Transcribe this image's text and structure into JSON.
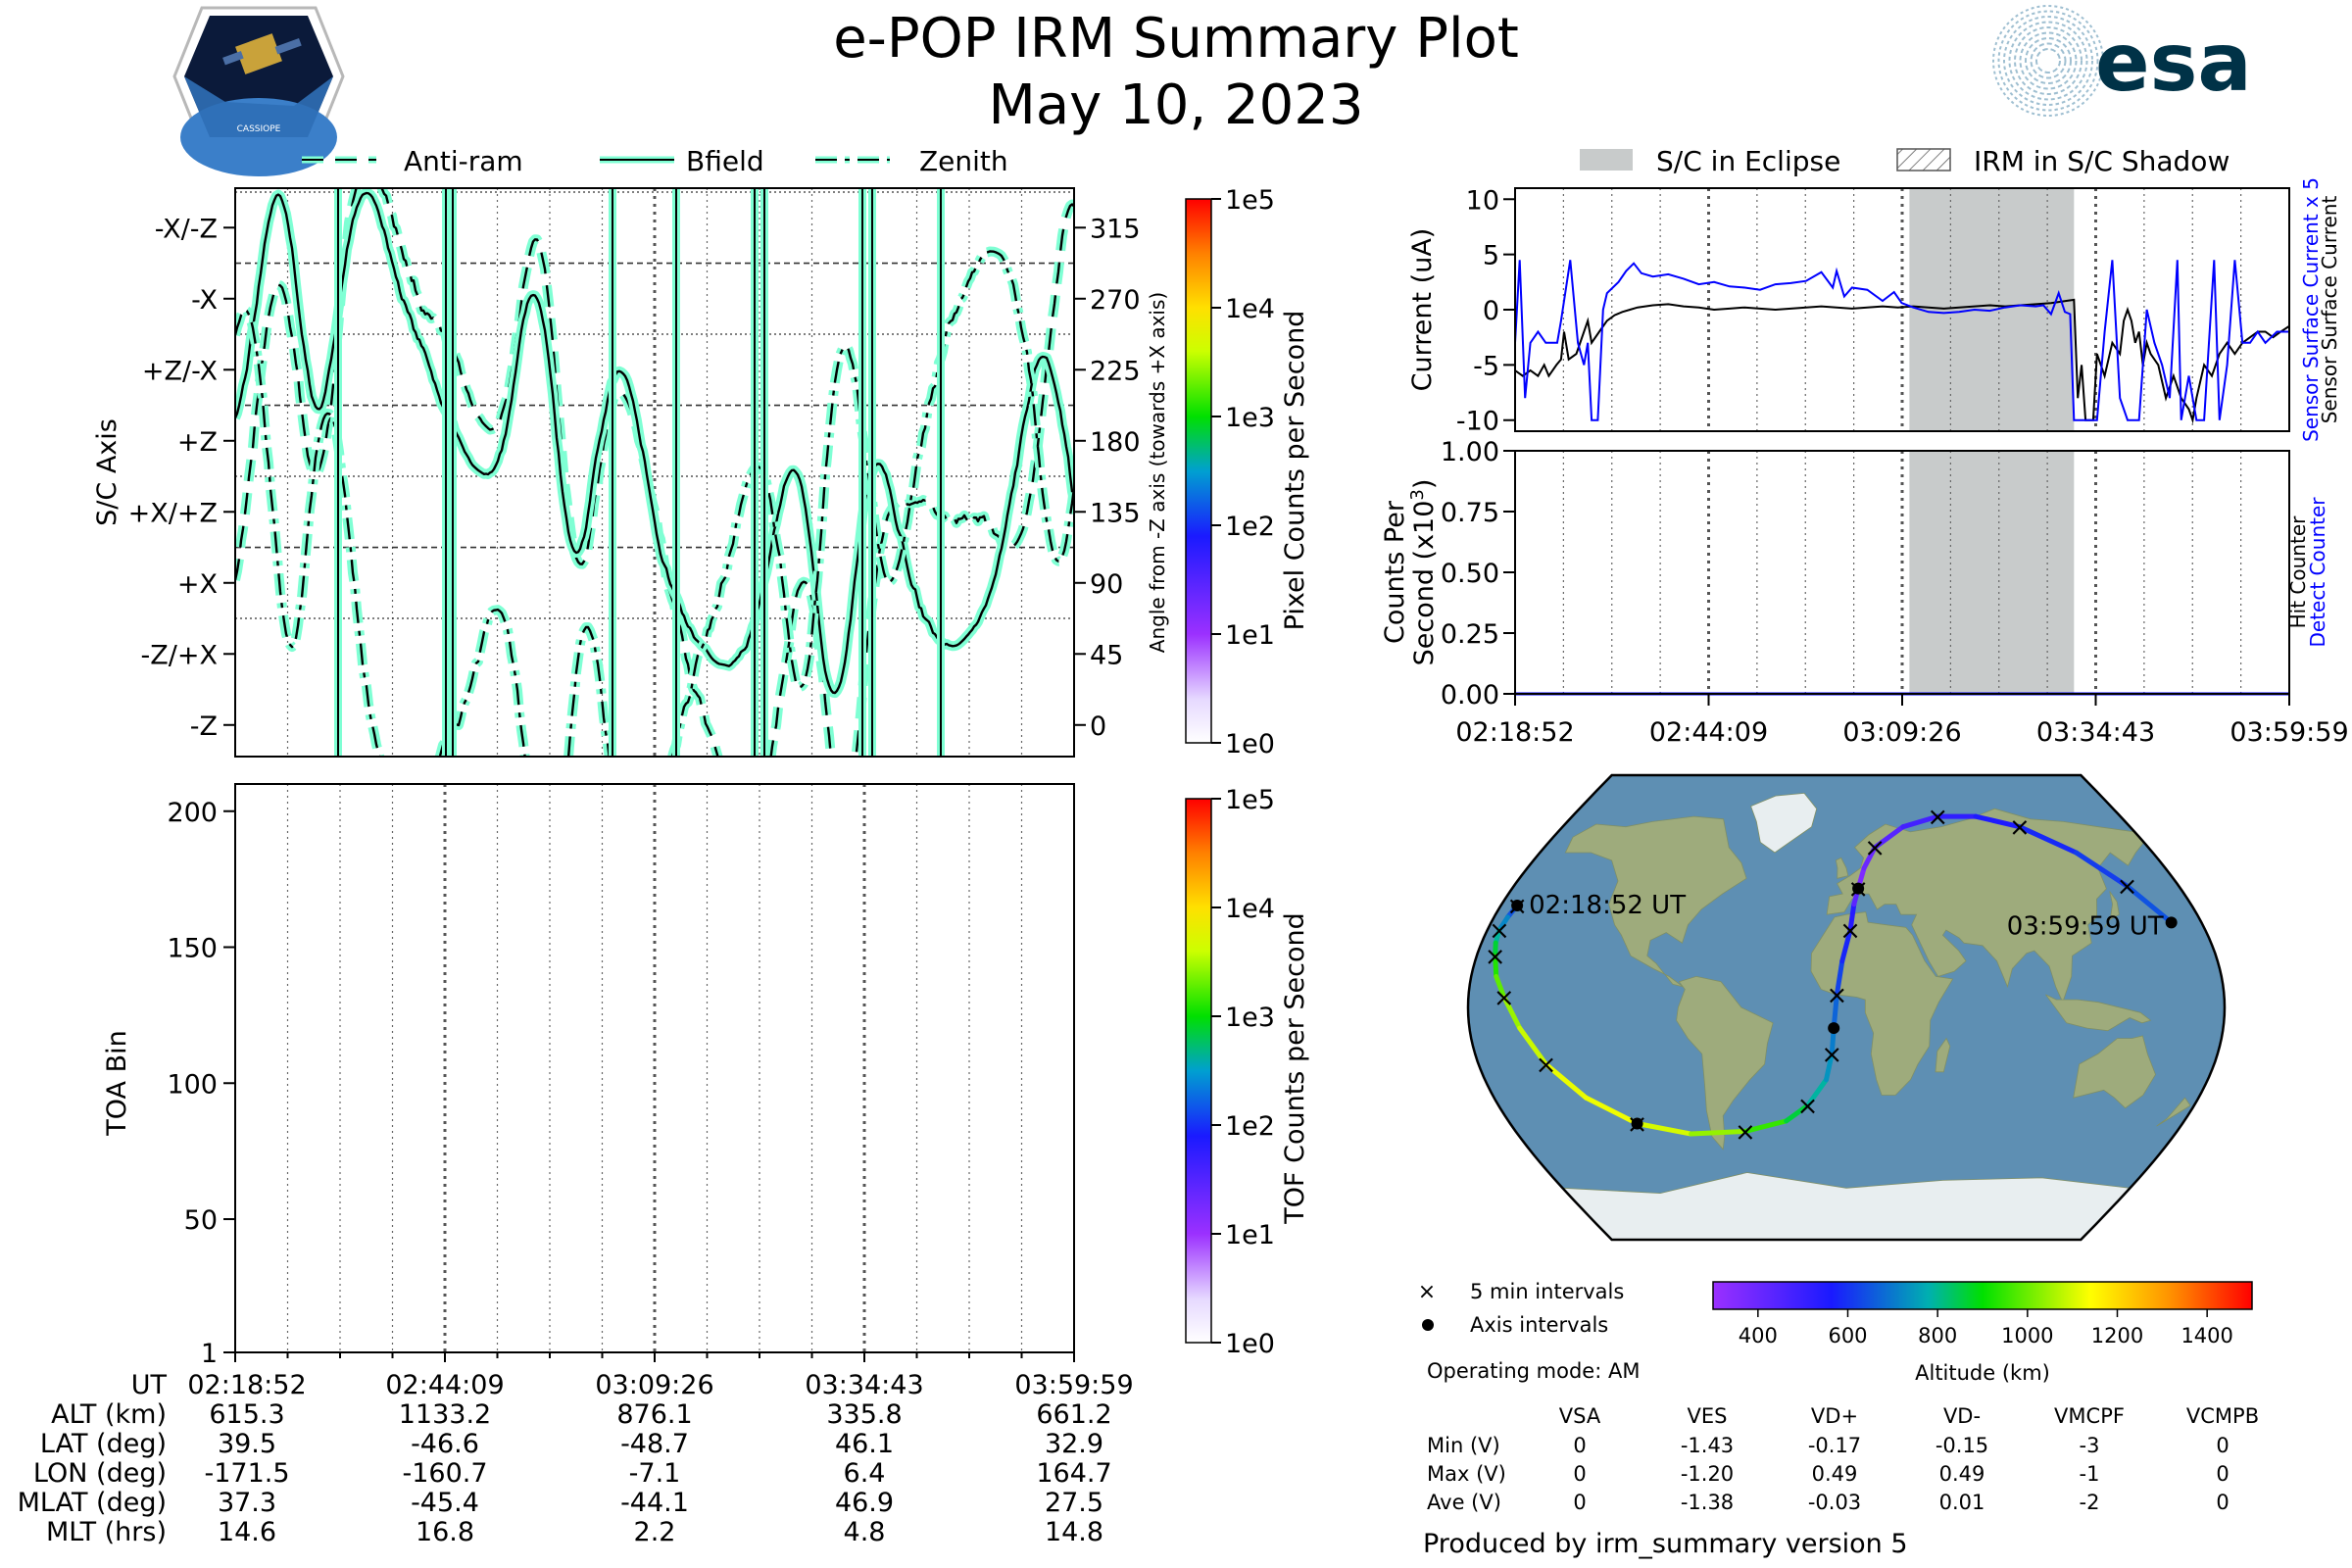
{
  "header": {
    "title": "e-POP IRM Summary Plot",
    "date": "May 10, 2023",
    "mission_logo_text": "CASSIOPE",
    "agency_logo_text": "esa"
  },
  "chart_data": [
    {
      "id": "sc_axis",
      "type": "line",
      "legend": [
        "Anti-ram",
        "Bfield",
        "Zenith"
      ],
      "ylabel": "S/C Axis",
      "ylabel_right": "Angle from -Z axis (towards +X axis)",
      "y_ticks_left": [
        "-X/-Z",
        "-X",
        "+Z/-X",
        "+Z",
        "+X/+Z",
        "+X",
        "-Z/+X",
        "-Z"
      ],
      "y_ticks_right": [
        "315",
        "270",
        "225",
        "180",
        "135",
        "90",
        "45",
        "0"
      ],
      "y_tick_values": [
        315,
        270,
        225,
        180,
        135,
        90,
        45,
        0
      ],
      "ylim": [
        -20,
        340
      ],
      "colorbar": {
        "label": "Pixel Counts per Second",
        "ticks": [
          "1e5",
          "1e4",
          "1e3",
          "1e2",
          "1e1",
          "1e0"
        ]
      }
    },
    {
      "id": "toa",
      "type": "heatmap",
      "ylabel": "TOA Bin",
      "y_ticks": [
        "200",
        "150",
        "100",
        "50",
        "1"
      ],
      "y_tick_values": [
        200,
        150,
        100,
        50,
        1
      ],
      "ylim": [
        1,
        210
      ],
      "colorbar": {
        "label": "TOF Counts per Second",
        "ticks": [
          "1e5",
          "1e4",
          "1e3",
          "1e2",
          "1e1",
          "1e0"
        ]
      }
    },
    {
      "id": "current",
      "type": "line",
      "legend": [
        "S/C in Eclipse",
        "IRM in S/C Shadow"
      ],
      "ylabel": "Current (uA)",
      "y_ticks": [
        "10",
        "5",
        "0",
        "-5",
        "-10"
      ],
      "y_tick_values": [
        10,
        5,
        0,
        -5,
        -10
      ],
      "ylim": [
        -11,
        11
      ],
      "right_labels": [
        "Sensor Surface Current x 5",
        "Sensor Surface Current"
      ],
      "eclipse_range_min": [
        51.5,
        73.0
      ],
      "series_blue": [
        [
          0,
          -3
        ],
        [
          0.6,
          4.5
        ],
        [
          1.3,
          -8
        ],
        [
          2,
          -3
        ],
        [
          3,
          -2
        ],
        [
          4,
          -3
        ],
        [
          5.5,
          -3
        ],
        [
          6,
          -1
        ],
        [
          7.2,
          4.5
        ],
        [
          8.2,
          -3
        ],
        [
          9,
          -5
        ],
        [
          9.5,
          -3
        ],
        [
          10,
          -10
        ],
        [
          10.8,
          -10
        ],
        [
          11.5,
          0
        ],
        [
          12,
          1.5
        ],
        [
          13.5,
          2.5
        ],
        [
          14.5,
          3.5
        ],
        [
          15.5,
          4.2
        ],
        [
          16.5,
          3.3
        ],
        [
          18,
          3
        ],
        [
          20,
          3.2
        ],
        [
          22,
          2.8
        ],
        [
          24,
          2.3
        ],
        [
          26,
          2.5
        ],
        [
          28,
          2.1
        ],
        [
          30,
          2
        ],
        [
          32,
          1.8
        ],
        [
          34,
          2.3
        ],
        [
          36,
          2.4
        ],
        [
          38,
          2.6
        ],
        [
          40,
          3.4
        ],
        [
          41.5,
          2
        ],
        [
          42,
          3.5
        ],
        [
          43,
          1.2
        ],
        [
          44,
          2
        ],
        [
          46,
          1.8
        ],
        [
          48,
          0.8
        ],
        [
          49.5,
          1.6
        ],
        [
          50.5,
          0.6
        ],
        [
          52,
          0.2
        ],
        [
          54,
          -0.2
        ],
        [
          56,
          -0.3
        ],
        [
          58,
          -0.2
        ],
        [
          60,
          0
        ],
        [
          62,
          -0.1
        ],
        [
          64,
          0.2
        ],
        [
          66,
          0.4
        ],
        [
          68,
          0.3
        ],
        [
          69,
          0.4
        ],
        [
          70,
          -0.4
        ],
        [
          71,
          1.5
        ],
        [
          71.8,
          -0.2
        ],
        [
          72.5,
          -0.4
        ],
        [
          73,
          -10
        ],
        [
          76,
          -10
        ],
        [
          77,
          -2
        ],
        [
          78,
          4.5
        ],
        [
          79,
          -8
        ],
        [
          80,
          -10
        ],
        [
          81.5,
          -10
        ],
        [
          82.5,
          0
        ],
        [
          83.5,
          -3
        ],
        [
          84.5,
          -5
        ],
        [
          85.5,
          -8
        ],
        [
          86.5,
          4.5
        ],
        [
          87,
          -10
        ],
        [
          88,
          -6
        ],
        [
          89,
          -10
        ],
        [
          90,
          -10
        ],
        [
          91.3,
          4.5
        ],
        [
          92,
          -10
        ],
        [
          93,
          -5
        ],
        [
          94,
          4.5
        ],
        [
          95,
          -3
        ],
        [
          96,
          -3
        ],
        [
          97,
          -2
        ],
        [
          98,
          -3
        ],
        [
          99.5,
          -2
        ],
        [
          101.1,
          -2
        ]
      ],
      "series_black": [
        [
          0,
          -5.5
        ],
        [
          1,
          -6
        ],
        [
          2,
          -5.5
        ],
        [
          3,
          -6
        ],
        [
          3.8,
          -5
        ],
        [
          4.4,
          -6
        ],
        [
          5.4,
          -5
        ],
        [
          6,
          -4.5
        ],
        [
          6.4,
          -2
        ],
        [
          7,
          -4.5
        ],
        [
          8,
          -4
        ],
        [
          9,
          -2
        ],
        [
          9.5,
          -1
        ],
        [
          10,
          -3
        ],
        [
          11,
          -2
        ],
        [
          12,
          -1
        ],
        [
          13,
          -0.5
        ],
        [
          14,
          -0.2
        ],
        [
          15,
          0
        ],
        [
          16,
          0.2
        ],
        [
          18,
          0.4
        ],
        [
          20,
          0.5
        ],
        [
          22,
          0.3
        ],
        [
          24,
          0.2
        ],
        [
          26,
          0
        ],
        [
          28,
          0.1
        ],
        [
          30,
          0.2
        ],
        [
          32,
          0.1
        ],
        [
          34,
          0
        ],
        [
          36,
          0.1
        ],
        [
          38,
          0.2
        ],
        [
          40,
          0.3
        ],
        [
          42,
          0.2
        ],
        [
          44,
          0.1
        ],
        [
          46,
          0.2
        ],
        [
          48,
          0.3
        ],
        [
          50,
          0.2
        ],
        [
          52,
          0.3
        ],
        [
          54,
          0.2
        ],
        [
          56,
          0.1
        ],
        [
          58,
          0.2
        ],
        [
          60,
          0.3
        ],
        [
          62,
          0.4
        ],
        [
          64,
          0.3
        ],
        [
          66,
          0.4
        ],
        [
          68,
          0.5
        ],
        [
          70,
          0.6
        ],
        [
          72,
          0.8
        ],
        [
          73,
          0.9
        ],
        [
          73.5,
          -8
        ],
        [
          74,
          -5
        ],
        [
          74.5,
          -10
        ],
        [
          75.5,
          -10
        ],
        [
          76,
          -4
        ],
        [
          77,
          -6
        ],
        [
          78,
          -3
        ],
        [
          79,
          -4
        ],
        [
          79.5,
          -1
        ],
        [
          80,
          0
        ],
        [
          80.5,
          -1
        ],
        [
          81,
          -3
        ],
        [
          81.5,
          -2
        ],
        [
          82,
          -5
        ],
        [
          82.5,
          -3
        ],
        [
          83,
          -4
        ],
        [
          84,
          -5
        ],
        [
          85,
          -8
        ],
        [
          86,
          -6
        ],
        [
          87,
          -8
        ],
        [
          88,
          -9
        ],
        [
          88.5,
          -10
        ],
        [
          89,
          -8
        ],
        [
          90,
          -5
        ],
        [
          91,
          -6
        ],
        [
          92,
          -4
        ],
        [
          93,
          -3
        ],
        [
          94,
          -4
        ],
        [
          95,
          -3
        ],
        [
          96,
          -2.5
        ],
        [
          97,
          -2
        ],
        [
          98,
          -2
        ],
        [
          99,
          -2.5
        ],
        [
          100,
          -2
        ],
        [
          101.1,
          -1.5
        ]
      ]
    },
    {
      "id": "counts",
      "type": "line",
      "ylabel": "Counts Per Second (x10³)",
      "ylabel_line1": "Counts Per",
      "ylabel_line2": "Second (x10",
      "ylabel_sup": "3",
      "y_ticks": [
        "1.00",
        "0.75",
        "0.50",
        "0.25",
        "0.00"
      ],
      "y_tick_values": [
        1.0,
        0.75,
        0.5,
        0.25,
        0.0
      ],
      "ylim": [
        0,
        1
      ],
      "right_labels": [
        "Detect Counter",
        "Hit Counter"
      ],
      "eclipse_range_min": [
        51.5,
        73.0
      ],
      "series_blue": [
        [
          0,
          0
        ],
        [
          101.1,
          0
        ]
      ],
      "x_ticks": [
        "02:18:52",
        "02:44:09",
        "03:09:26",
        "03:34:43",
        "03:59:59"
      ]
    },
    {
      "id": "ground_track",
      "type": "map",
      "start_label": "02:18:52 UT",
      "end_label": "03:59:59 UT",
      "legend_markers": [
        "5 min intervals",
        "Axis intervals"
      ],
      "colorbar": {
        "label": "Altitude (km)",
        "ticks": [
          "400",
          "600",
          "800",
          "1000",
          "1200",
          "1400"
        ],
        "range_km": [
          300,
          1500
        ]
      },
      "track_lonlat": [
        [
          -171.5,
          39.5
        ],
        [
          -173,
          35
        ],
        [
          -174,
          30
        ],
        [
          -173,
          25
        ],
        [
          -171,
          20
        ],
        [
          -168,
          12
        ],
        [
          -163,
          4
        ],
        [
          -156,
          -8
        ],
        [
          -147,
          -22
        ],
        [
          -133,
          -35
        ],
        [
          -112,
          -45
        ],
        [
          -85,
          -49
        ],
        [
          -55,
          -48
        ],
        [
          -32,
          -44
        ],
        [
          -20,
          -38
        ],
        [
          -10,
          -28
        ],
        [
          -7,
          -18
        ],
        [
          -6,
          -8
        ],
        [
          -4.5,
          5
        ],
        [
          -2,
          18
        ],
        [
          2,
          30
        ],
        [
          4,
          40
        ],
        [
          6.4,
          46.1
        ],
        [
          10,
          54
        ],
        [
          17,
          62
        ],
        [
          36,
          70
        ],
        [
          60,
          74
        ],
        [
          85,
          74
        ],
        [
          110,
          70
        ],
        [
          135,
          60
        ],
        [
          152,
          47
        ],
        [
          164.7,
          32.9
        ]
      ],
      "track_altitude_km": [
        615,
        680,
        760,
        830,
        900,
        960,
        1020,
        1070,
        1110,
        1130,
        1120,
        1080,
        1000,
        900,
        820,
        760,
        720,
        690,
        650,
        600,
        560,
        520,
        336,
        380,
        420,
        460,
        500,
        540,
        570,
        600,
        630,
        661
      ]
    }
  ],
  "ephemeris": {
    "row_labels": [
      "UT",
      "ALT (km)",
      "LAT (deg)",
      "LON (deg)",
      "MLAT (deg)",
      "MLT (hrs)"
    ],
    "columns": [
      [
        "02:18:52",
        "615.3",
        "39.5",
        "-171.5",
        "37.3",
        "14.6"
      ],
      [
        "02:44:09",
        "1133.2",
        "-46.6",
        "-160.7",
        "-45.4",
        "16.8"
      ],
      [
        "03:09:26",
        "876.1",
        "-48.7",
        "-7.1",
        "-44.1",
        "2.2"
      ],
      [
        "03:34:43",
        "335.8",
        "46.1",
        "6.4",
        "46.9",
        "4.8"
      ],
      [
        "03:59:59",
        "661.2",
        "32.9",
        "164.7",
        "27.5",
        "14.8"
      ]
    ]
  },
  "voltages": {
    "operating_mode": "Operating mode: AM",
    "headers": [
      "VSA",
      "VES",
      "VD+",
      "VD-",
      "VMCPF",
      "VCMPB"
    ],
    "rows": [
      {
        "label": "Min (V)",
        "values": [
          "0",
          "-1.43",
          "-0.17",
          "-0.15",
          "-3",
          "0"
        ]
      },
      {
        "label": "Max (V)",
        "values": [
          "0",
          "-1.20",
          "0.49",
          "0.49",
          "-1",
          "0"
        ]
      },
      {
        "label": "Ave (V)",
        "values": [
          "0",
          "-1.38",
          "-0.03",
          "0.01",
          "-2",
          "0"
        ]
      }
    ]
  },
  "footer": {
    "produced_by": "Produced by irm_summary version 5"
  },
  "colors": {
    "trace_fill": "#7fffd4",
    "trace_stroke": "#000000",
    "eclipse": "#c8cbcb",
    "blue_series": "#0000ff",
    "ocean": "#5e8fb3",
    "land": "#9eab7c"
  }
}
